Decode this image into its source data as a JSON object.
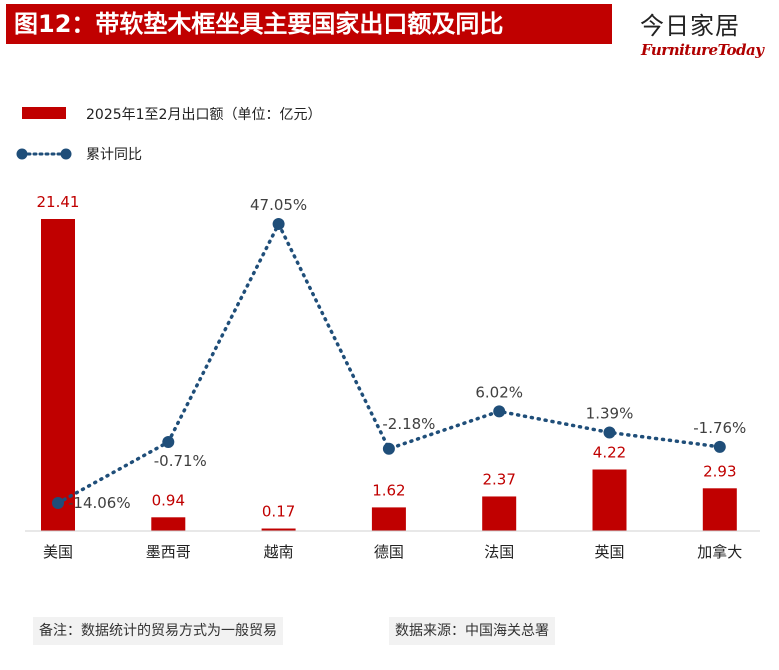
{
  "header": {
    "title": "图12：带软垫木框坐具主要国家出口额及同比",
    "brand_cn": "今日家居",
    "brand_en": "FurnitureToday"
  },
  "colors": {
    "bar": "#c00000",
    "line": "#1f4e79",
    "title_bg": "#c00000"
  },
  "chart_data": {
    "type": "bar",
    "categories": [
      "美国",
      "墨西哥",
      "越南",
      "德国",
      "法国",
      "英国",
      "加拿大"
    ],
    "series": [
      {
        "name": "2025年1至2月出口额（单位：亿元）",
        "type": "bar",
        "values": [
          21.41,
          0.94,
          0.17,
          1.62,
          2.37,
          4.22,
          2.93
        ],
        "labels": [
          "21.41",
          "0.94",
          "0.17",
          "1.62",
          "2.37",
          "4.22",
          "2.93"
        ]
      },
      {
        "name": "累计同比",
        "type": "line",
        "values": [
          -14.06,
          -0.71,
          47.05,
          -2.18,
          6.02,
          1.39,
          -1.76
        ],
        "labels": [
          "-14.06%",
          "-0.71%",
          "47.05%",
          "-2.18%",
          "6.02%",
          "1.39%",
          "-1.76%"
        ]
      }
    ],
    "legend": "top-left",
    "grid": false
  },
  "footer": {
    "note": "备注：数据统计的贸易方式为一般贸易",
    "source": "数据来源：中国海关总署"
  }
}
